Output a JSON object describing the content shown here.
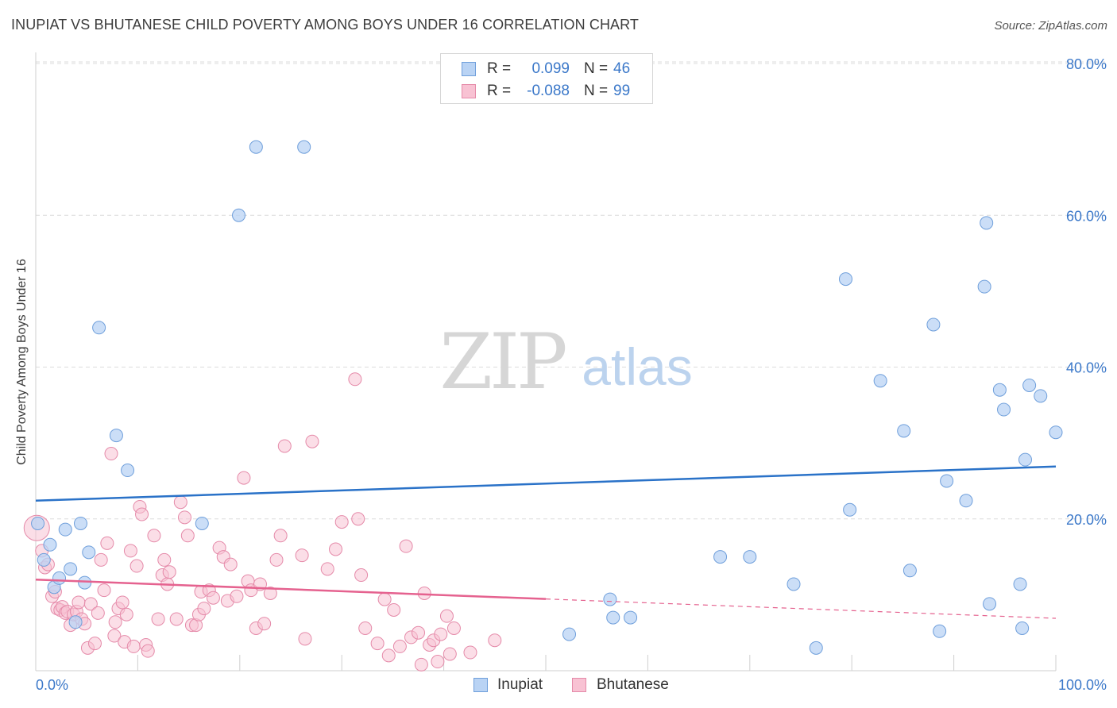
{
  "title": "INUPIAT VS BHUTANESE CHILD POVERTY AMONG BOYS UNDER 16 CORRELATION CHART",
  "source": "Source: ZipAtlas.com",
  "watermark": {
    "zip": "ZIP",
    "atlas": "atlas"
  },
  "legend": {
    "rows": [
      {
        "r_label": "R =",
        "r_value": "0.099",
        "n_label": "N =",
        "n_value": "46"
      },
      {
        "r_label": "R =",
        "r_value": "-0.088",
        "n_label": "N =",
        "n_value": "99"
      }
    ]
  },
  "bottom_legend": {
    "inupiat": "Inupiat",
    "bhutanese": "Bhutanese"
  },
  "colors": {
    "inupiat_fill": "#b9d3f4",
    "inupiat_stroke": "#6f9fdb",
    "inupiat_line": "#2a72c8",
    "bhutanese_fill": "#f8c2d3",
    "bhutanese_stroke": "#e58aa9",
    "bhutanese_line": "#e5628f",
    "axis_text": "#3b78c9",
    "grid": "#dcdcdc"
  },
  "chart_data": {
    "type": "scatter",
    "title": "INUPIAT VS BHUTANESE CHILD POVERTY AMONG BOYS UNDER 16 CORRELATION CHART",
    "xlabel": "",
    "ylabel": "Child Poverty Among Boys Under 16",
    "xlim": [
      0,
      100
    ],
    "ylim": [
      0,
      80
    ],
    "x_tick_labels": [
      "0.0%",
      "100.0%"
    ],
    "y_tick_labels": [
      "20.0%",
      "40.0%",
      "60.0%",
      "80.0%"
    ],
    "y_ticks": [
      20,
      40,
      60,
      80
    ],
    "grid": true,
    "legend_position": "top-center",
    "series": [
      {
        "name": "Inupiat",
        "r": 0.099,
        "n": 46,
        "trend": {
          "x": [
            0,
            100
          ],
          "y": [
            22.4,
            26.9
          ],
          "dashed_from": null
        },
        "points": [
          [
            0.2,
            19.4
          ],
          [
            0.8,
            14.6
          ],
          [
            1.4,
            16.6
          ],
          [
            1.8,
            11.0
          ],
          [
            2.3,
            12.2
          ],
          [
            2.9,
            18.6
          ],
          [
            3.4,
            13.4
          ],
          [
            3.9,
            6.4
          ],
          [
            4.4,
            19.4
          ],
          [
            4.8,
            11.6
          ],
          [
            5.2,
            15.6
          ],
          [
            6.2,
            45.2
          ],
          [
            7.9,
            31.0
          ],
          [
            9.0,
            26.4
          ],
          [
            16.3,
            19.4
          ],
          [
            19.9,
            60.0
          ],
          [
            21.6,
            69.0
          ],
          [
            26.3,
            69.0
          ],
          [
            52.3,
            4.8
          ],
          [
            56.3,
            9.4
          ],
          [
            56.6,
            7.0
          ],
          [
            58.3,
            7.0
          ],
          [
            67.1,
            15.0
          ],
          [
            70.0,
            15.0
          ],
          [
            74.3,
            11.4
          ],
          [
            76.5,
            3.0
          ],
          [
            79.4,
            51.6
          ],
          [
            79.8,
            21.2
          ],
          [
            82.8,
            38.2
          ],
          [
            85.1,
            31.6
          ],
          [
            85.7,
            13.2
          ],
          [
            88.0,
            45.6
          ],
          [
            88.6,
            5.2
          ],
          [
            89.3,
            25.0
          ],
          [
            91.2,
            22.4
          ],
          [
            93.0,
            50.6
          ],
          [
            93.2,
            59.0
          ],
          [
            93.5,
            8.8
          ],
          [
            94.5,
            37.0
          ],
          [
            94.9,
            34.4
          ],
          [
            96.5,
            11.4
          ],
          [
            96.7,
            5.6
          ],
          [
            97.0,
            27.8
          ],
          [
            97.4,
            37.6
          ],
          [
            98.5,
            36.2
          ],
          [
            100.0,
            31.4
          ]
        ]
      },
      {
        "name": "Bhutanese",
        "r": -0.088,
        "n": 99,
        "trend": {
          "x": [
            0,
            100
          ],
          "y": [
            12.0,
            6.9
          ],
          "dashed_from": 50
        },
        "points": [
          [
            0.1,
            18.8
          ],
          [
            0.6,
            15.8
          ],
          [
            0.9,
            13.6
          ],
          [
            1.2,
            14.0
          ],
          [
            1.6,
            9.8
          ],
          [
            1.9,
            10.4
          ],
          [
            2.1,
            8.2
          ],
          [
            2.4,
            8.0
          ],
          [
            2.6,
            8.4
          ],
          [
            2.9,
            7.6
          ],
          [
            3.1,
            7.8
          ],
          [
            3.4,
            6.0
          ],
          [
            3.7,
            7.4
          ],
          [
            4.0,
            7.8
          ],
          [
            4.2,
            9.0
          ],
          [
            4.5,
            6.8
          ],
          [
            4.8,
            6.2
          ],
          [
            5.1,
            3.0
          ],
          [
            5.4,
            8.8
          ],
          [
            5.8,
            3.6
          ],
          [
            6.1,
            7.6
          ],
          [
            6.4,
            14.6
          ],
          [
            6.7,
            10.6
          ],
          [
            7.0,
            16.8
          ],
          [
            7.4,
            28.6
          ],
          [
            7.7,
            4.6
          ],
          [
            7.8,
            6.4
          ],
          [
            8.1,
            8.2
          ],
          [
            8.5,
            9.0
          ],
          [
            8.7,
            3.8
          ],
          [
            8.9,
            7.4
          ],
          [
            9.3,
            15.8
          ],
          [
            9.6,
            3.2
          ],
          [
            9.9,
            13.8
          ],
          [
            10.2,
            21.6
          ],
          [
            10.4,
            20.6
          ],
          [
            10.8,
            3.4
          ],
          [
            11.0,
            2.6
          ],
          [
            11.6,
            17.8
          ],
          [
            12.0,
            6.8
          ],
          [
            12.4,
            12.6
          ],
          [
            12.6,
            14.6
          ],
          [
            12.9,
            11.4
          ],
          [
            13.1,
            13.0
          ],
          [
            13.8,
            6.8
          ],
          [
            14.2,
            22.2
          ],
          [
            14.6,
            20.2
          ],
          [
            14.9,
            17.8
          ],
          [
            15.3,
            6.0
          ],
          [
            15.7,
            6.0
          ],
          [
            16.0,
            7.4
          ],
          [
            16.2,
            10.4
          ],
          [
            16.5,
            8.2
          ],
          [
            17.0,
            10.6
          ],
          [
            17.4,
            9.6
          ],
          [
            18.0,
            16.2
          ],
          [
            18.4,
            15.0
          ],
          [
            18.8,
            9.2
          ],
          [
            19.1,
            14.0
          ],
          [
            19.7,
            9.8
          ],
          [
            20.4,
            25.4
          ],
          [
            20.8,
            11.8
          ],
          [
            21.1,
            10.6
          ],
          [
            21.6,
            5.6
          ],
          [
            22.0,
            11.4
          ],
          [
            22.4,
            6.2
          ],
          [
            23.0,
            10.2
          ],
          [
            23.6,
            14.6
          ],
          [
            24.0,
            17.8
          ],
          [
            24.4,
            29.6
          ],
          [
            26.1,
            15.2
          ],
          [
            26.4,
            4.2
          ],
          [
            27.1,
            30.2
          ],
          [
            28.6,
            13.4
          ],
          [
            29.4,
            16.0
          ],
          [
            30.0,
            19.6
          ],
          [
            31.3,
            38.4
          ],
          [
            31.6,
            20.0
          ],
          [
            31.9,
            12.6
          ],
          [
            32.3,
            5.6
          ],
          [
            33.5,
            3.6
          ],
          [
            34.2,
            9.4
          ],
          [
            34.6,
            2.0
          ],
          [
            35.1,
            8.0
          ],
          [
            35.7,
            3.2
          ],
          [
            36.3,
            16.4
          ],
          [
            36.8,
            4.4
          ],
          [
            37.5,
            5.0
          ],
          [
            37.8,
            0.8
          ],
          [
            38.1,
            10.2
          ],
          [
            38.6,
            3.4
          ],
          [
            39.0,
            4.0
          ],
          [
            39.4,
            1.2
          ],
          [
            39.7,
            4.8
          ],
          [
            40.3,
            7.2
          ],
          [
            40.6,
            2.2
          ],
          [
            41.0,
            5.6
          ],
          [
            42.6,
            2.4
          ],
          [
            45.0,
            4.0
          ]
        ]
      }
    ]
  }
}
